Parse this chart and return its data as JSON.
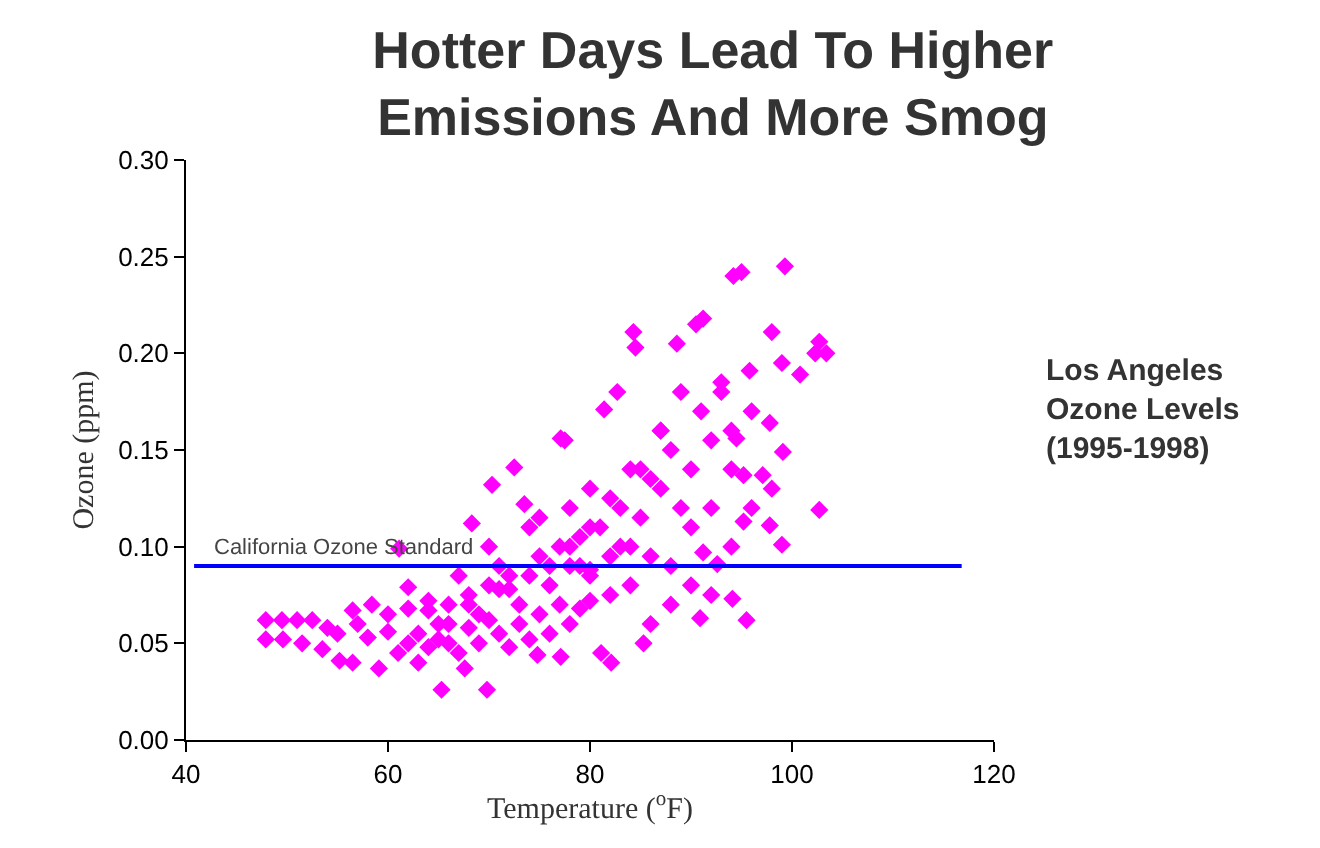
{
  "chart_data": {
    "type": "scatter",
    "title": "Hotter Days Lead To Higher\nEmissions And More Smog",
    "xlabel": "Temperature ($^{o}$F)",
    "ylabel": "Ozone (ppm)",
    "annotations": [
      "Los Angeles\nOzone Levels\n(1995-1998)"
    ],
    "marker": "diamond",
    "xlim": [
      40,
      120
    ],
    "xticks": [
      40,
      60,
      80,
      100,
      120
    ],
    "ylim": [
      0,
      0.3
    ],
    "yticks": [
      {
        "value": 0,
        "label": "0.00"
      },
      {
        "value": 0.05,
        "label": "0.05"
      },
      {
        "value": 0.1,
        "label": "0.10"
      },
      {
        "value": 0.15,
        "label": "0.15"
      },
      {
        "value": 0.2,
        "label": "0.20"
      },
      {
        "value": 0.25,
        "label": "0.25"
      },
      {
        "value": 0.3,
        "label": "0.30"
      }
    ],
    "ref_lines": [
      {
        "axis": "y",
        "value": 0.09,
        "label": "California Ozone Standard",
        "color": "#0000ff"
      }
    ],
    "series": [
      {
        "color": "#ff00ff",
        "x": [
          47.9,
          49.5,
          51,
          52.5,
          47.9,
          49.6,
          51.5,
          53.5,
          55.2,
          56.5,
          59.1,
          65.3,
          69.8,
          67.6,
          70.3,
          72.5,
          77.1,
          73.5,
          68.3,
          61.1,
          62,
          58.4,
          56.5,
          74.8,
          77.1,
          82.1,
          85.3,
          81.1,
          95.5,
          90.9,
          94.1,
          99,
          102.7,
          99.3,
          94.2,
          95,
          84.3,
          84.5,
          91.2,
          90.5,
          102.7,
          103.4,
          102.3,
          100.8,
          99,
          98,
          88.6,
          81.4,
          77.5,
          82.7,
          95.8,
          97.8,
          99.1,
          94.5,
          97.1,
          95.2,
          97.8,
          95.2,
          92.6,
          91.2,
          54,
          55,
          57,
          58,
          60,
          61,
          62,
          63,
          64,
          65,
          66,
          67,
          68,
          69,
          70,
          71,
          72,
          73,
          74,
          75,
          76,
          77,
          78,
          79,
          80,
          60,
          62,
          64,
          66,
          68,
          70,
          72,
          74,
          76,
          78,
          80,
          82,
          84,
          63,
          65,
          67,
          69,
          71,
          73,
          75,
          77,
          79,
          81,
          83,
          85,
          87,
          89,
          66,
          68,
          70,
          72,
          74,
          76,
          78,
          80,
          82,
          84,
          86,
          88,
          90,
          92,
          94,
          96,
          75,
          78,
          80,
          83,
          85,
          87,
          89,
          91,
          93,
          80,
          82,
          84,
          86,
          88,
          90,
          92,
          94,
          86,
          88,
          90,
          92,
          94,
          96,
          98,
          64,
          71,
          79,
          87,
          93
        ],
        "values": [
          0.062,
          0.062,
          0.062,
          0.062,
          0.052,
          0.052,
          0.05,
          0.047,
          0.041,
          0.04,
          0.037,
          0.026,
          0.026,
          0.037,
          0.132,
          0.141,
          0.156,
          0.122,
          0.112,
          0.099,
          0.079,
          0.07,
          0.067,
          0.044,
          0.043,
          0.04,
          0.05,
          0.045,
          0.062,
          0.063,
          0.073,
          0.101,
          0.119,
          0.245,
          0.24,
          0.242,
          0.211,
          0.203,
          0.218,
          0.215,
          0.206,
          0.2,
          0.2,
          0.189,
          0.195,
          0.211,
          0.205,
          0.171,
          0.155,
          0.18,
          0.191,
          0.164,
          0.149,
          0.156,
          0.137,
          0.137,
          0.111,
          0.113,
          0.091,
          0.097,
          0.058,
          0.055,
          0.06,
          0.053,
          0.056,
          0.045,
          0.05,
          0.055,
          0.048,
          0.052,
          0.06,
          0.045,
          0.058,
          0.05,
          0.062,
          0.055,
          0.048,
          0.06,
          0.052,
          0.065,
          0.055,
          0.07,
          0.06,
          0.068,
          0.072,
          0.065,
          0.068,
          0.072,
          0.07,
          0.075,
          0.08,
          0.078,
          0.085,
          0.08,
          0.09,
          0.088,
          0.095,
          0.1,
          0.04,
          0.06,
          0.085,
          0.065,
          0.09,
          0.07,
          0.095,
          0.1,
          0.105,
          0.11,
          0.12,
          0.115,
          0.13,
          0.12,
          0.05,
          0.07,
          0.1,
          0.085,
          0.11,
          0.09,
          0.12,
          0.13,
          0.125,
          0.14,
          0.135,
          0.15,
          0.14,
          0.155,
          0.16,
          0.17,
          0.115,
          0.1,
          0.11,
          0.1,
          0.14,
          0.16,
          0.18,
          0.17,
          0.18,
          0.085,
          0.075,
          0.08,
          0.095,
          0.09,
          0.11,
          0.12,
          0.14,
          0.06,
          0.07,
          0.08,
          0.075,
          0.1,
          0.12,
          0.13,
          0.067,
          0.078,
          0.09,
          0.16,
          0.185
        ]
      }
    ]
  }
}
